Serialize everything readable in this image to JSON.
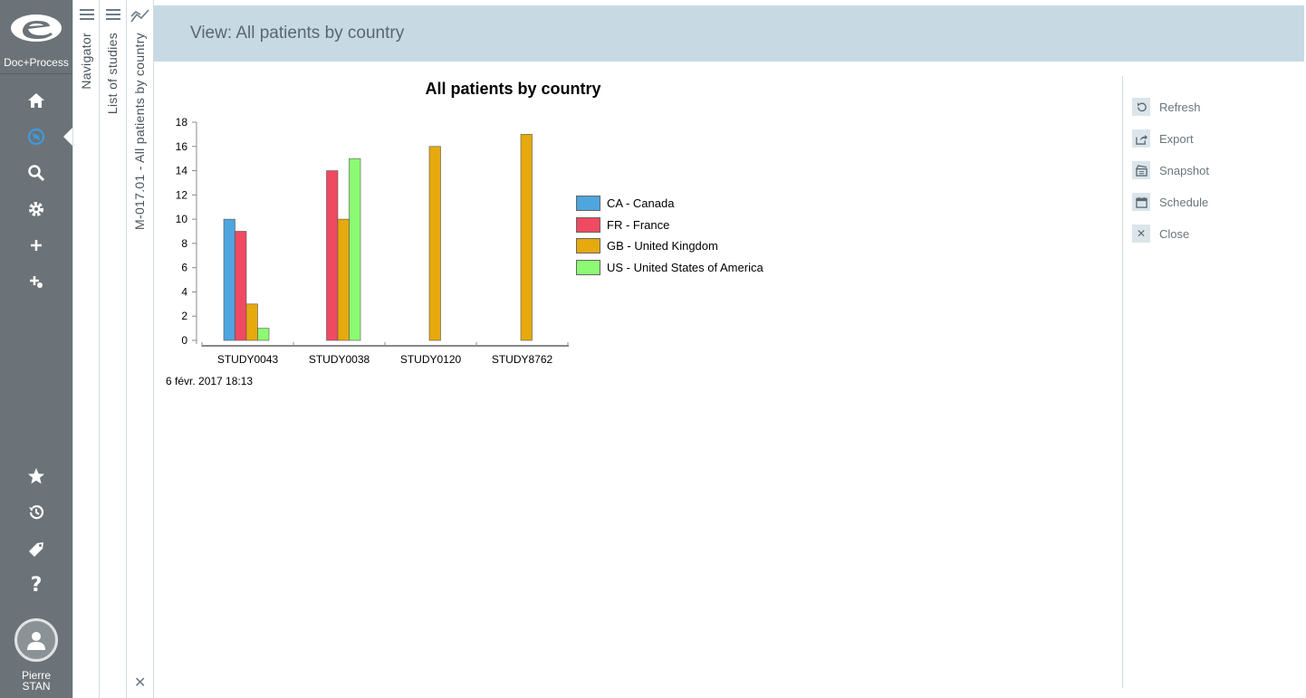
{
  "app": {
    "brand": "Doc+Process"
  },
  "rail": {
    "user_first": "Pierre",
    "user_last": "STAN"
  },
  "panels": {
    "navigator": "Navigator",
    "studies": "List of studies",
    "view": "M-017.01 - All patients by country"
  },
  "header": {
    "title": "View: All patients by country"
  },
  "actions": [
    {
      "label": "Refresh",
      "icon": "refresh-icon"
    },
    {
      "label": "Export",
      "icon": "export-icon"
    },
    {
      "label": "Snapshot",
      "icon": "snapshot-icon"
    },
    {
      "label": "Schedule",
      "icon": "calendar-icon"
    },
    {
      "label": "Close",
      "icon": "close-icon"
    }
  ],
  "chart_data": {
    "type": "bar",
    "title": "All patients by country",
    "categories": [
      "STUDY0043",
      "STUDY0038",
      "STUDY0120",
      "STUDY8762"
    ],
    "series": [
      {
        "name": "CA - Canada",
        "color": "#4fa5de",
        "values": [
          10,
          0,
          0,
          0
        ]
      },
      {
        "name": "FR - France",
        "color": "#ef4a62",
        "values": [
          9,
          14,
          0,
          0
        ]
      },
      {
        "name": "GB - United Kingdom",
        "color": "#e6a90e",
        "values": [
          3,
          10,
          16,
          17
        ]
      },
      {
        "name": "US - United States of America",
        "color": "#8cfa72",
        "values": [
          1,
          15,
          0,
          0
        ]
      }
    ],
    "ylim": [
      0,
      18
    ],
    "yticks": [
      0,
      2,
      4,
      6,
      8,
      10,
      12,
      14,
      16,
      18
    ],
    "legend": "right",
    "grid": false,
    "footer": "6 févr. 2017 18:13"
  }
}
